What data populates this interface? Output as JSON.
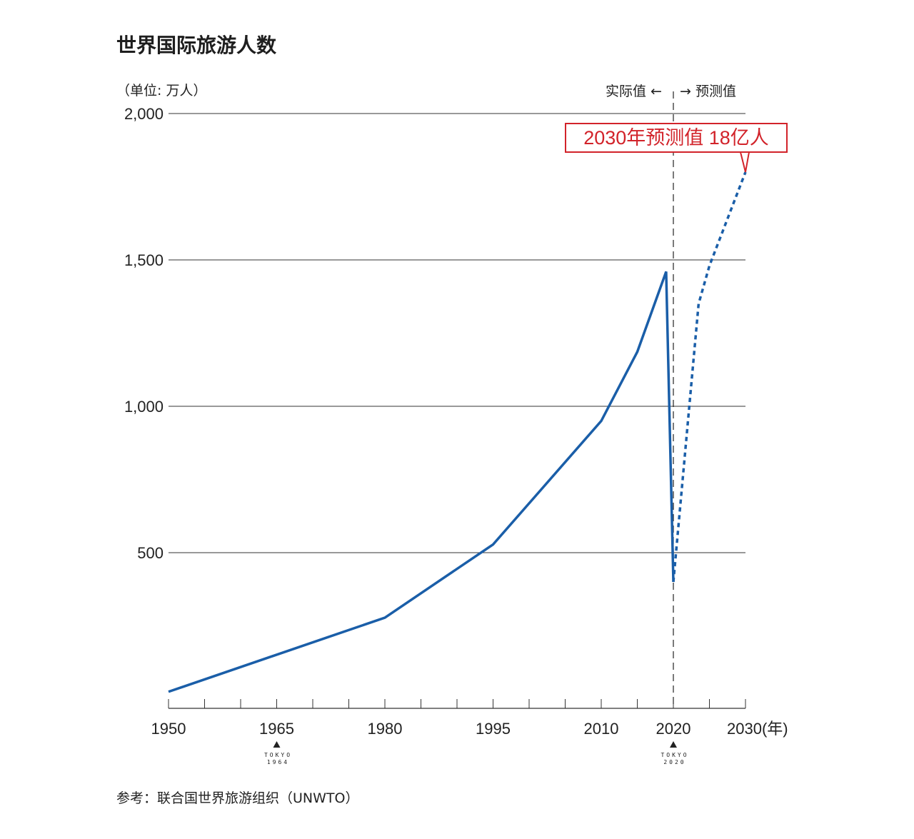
{
  "title": "世界国际旅游人数",
  "unit_label": "（单位: 万人）",
  "source": "参考：联合国世界旅游组织（UNWTO）",
  "period_labels": {
    "actual": "实际值 ←",
    "forecast": "→ 预测值"
  },
  "callout": "2030年预测值 18亿人",
  "colors": {
    "line": "#1a5ea8",
    "accent": "#d2232a",
    "grid": "#333333"
  },
  "markers": [
    {
      "year": 1965,
      "line1": "TOKYO",
      "line2": "1964",
      "icon": "triangle-up-icon"
    },
    {
      "year": 2020,
      "line1": "TOKYO",
      "line2": "2020",
      "icon": "triangle-up-icon"
    }
  ],
  "chart_data": {
    "type": "line",
    "title": "世界国际旅游人数",
    "ylabel": "（单位: 万人）",
    "xlabel": "(年)",
    "ylim": [
      0,
      2000
    ],
    "xlim": [
      1950,
      2030
    ],
    "x_tick_labels": [
      "1950",
      "1965",
      "1980",
      "1995",
      "2010",
      "2020",
      "2030(年)"
    ],
    "x_tick_values": [
      1950,
      1965,
      1980,
      1995,
      2010,
      2020,
      2030
    ],
    "y_ticks": [
      {
        "value": 500,
        "label": "500"
      },
      {
        "value": 1000,
        "label": "1,000"
      },
      {
        "value": 1500,
        "label": "1,500"
      },
      {
        "value": 2000,
        "label": "2,000"
      }
    ],
    "grid": true,
    "series": [
      {
        "style": "solid",
        "points": [
          [
            1950,
            25
          ],
          [
            1980,
            278
          ],
          [
            1995,
            528
          ],
          [
            2010,
            950
          ],
          [
            2015,
            1186
          ],
          [
            2019,
            1460
          ],
          [
            2020,
            400
          ]
        ]
      },
      {
        "style": "dashed",
        "points": [
          [
            2020,
            400
          ],
          [
            2023.5,
            1350
          ],
          [
            2025,
            1480
          ],
          [
            2030,
            1800
          ]
        ]
      }
    ],
    "divider_year": 2020,
    "annotations": [
      "2030年预测值 18亿人"
    ]
  }
}
